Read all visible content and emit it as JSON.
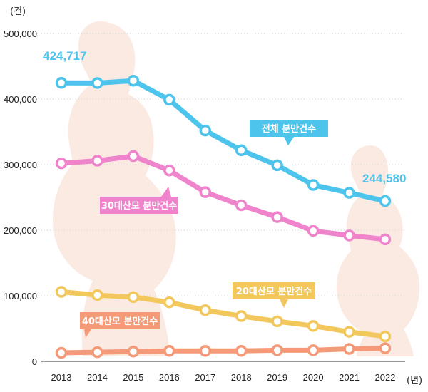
{
  "chart_data": {
    "type": "line",
    "y_unit": "(건)",
    "x_unit": "(년)",
    "x": [
      "2013",
      "2014",
      "2015",
      "2016",
      "2017",
      "2018",
      "2019",
      "2020",
      "2021",
      "2022"
    ],
    "yticks": [
      "0",
      "100,000",
      "200,000",
      "300,000",
      "400,000",
      "500,000"
    ],
    "ylim": [
      0,
      500000
    ],
    "grid": true,
    "series": [
      {
        "name": "전체 분만건수",
        "color": "#4cc4ec",
        "values": [
          424717,
          424500,
          428000,
          399000,
          352000,
          322000,
          299000,
          269000,
          257000,
          244580
        ]
      },
      {
        "name": "30대산모 분만건수",
        "color": "#ef83cc",
        "values": [
          302000,
          306000,
          313000,
          291000,
          258000,
          238000,
          220000,
          199000,
          192000,
          186000
        ]
      },
      {
        "name": "20대산모 분만건수",
        "color": "#f2c75c",
        "values": [
          106000,
          101000,
          98000,
          90000,
          78000,
          69000,
          61000,
          54000,
          45000,
          38000
        ]
      },
      {
        "name": "40대산모 분만건수",
        "color": "#f59a78",
        "values": [
          13000,
          14000,
          15000,
          16000,
          16000,
          16000,
          17000,
          17000,
          19000,
          20000
        ]
      }
    ],
    "annotations": {
      "first_total": "424,717",
      "last_total": "244,580"
    }
  }
}
